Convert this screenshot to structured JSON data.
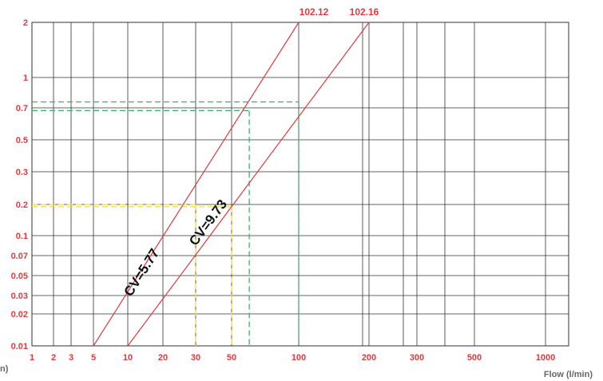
{
  "chart_data": {
    "type": "line",
    "xlabel": "Flow (l/min)",
    "ylabel_fragment": "n)",
    "x_ticks": [
      {
        "label": "1"
      },
      {
        "label": "2"
      },
      {
        "label": "3"
      },
      {
        "label": "5"
      },
      {
        "label": "10"
      },
      {
        "label": "20"
      },
      {
        "label": "30"
      },
      {
        "label": "50"
      },
      {
        "label": "100"
      },
      {
        "label": "200"
      },
      {
        "label": "300"
      },
      {
        "label": "500"
      },
      {
        "label": "1000"
      }
    ],
    "y_ticks": [
      {
        "label": "2"
      },
      {
        "label": "1"
      },
      {
        "label": "0.7"
      },
      {
        "label": "0.5"
      },
      {
        "label": "0.3"
      },
      {
        "label": "0.2"
      },
      {
        "label": "0.1"
      },
      {
        "label": "0.07"
      },
      {
        "label": "0.05"
      },
      {
        "label": "0.03"
      },
      {
        "label": "0.02"
      },
      {
        "label": "0.01"
      }
    ],
    "series": [
      {
        "name": "102.12",
        "curve_label": "CV=5.77",
        "points": [
          {
            "x": "5",
            "y": "0.01"
          },
          {
            "x": "100",
            "y": "2"
          }
        ]
      },
      {
        "name": "102.16",
        "curve_label": "CV=9.73",
        "points": [
          {
            "x": "10",
            "y": "0.01"
          },
          {
            "x": "200",
            "y": "2"
          }
        ]
      }
    ],
    "guides": [
      {
        "color": "yellow",
        "series": "102.12",
        "x": "30",
        "y": "0.2"
      },
      {
        "color": "yellow",
        "series": "102.16",
        "x": "50",
        "y": "0.19"
      },
      {
        "color": "green",
        "series": "102.12",
        "x": "60",
        "y": "0.68"
      },
      {
        "color": "green",
        "series": "102.16",
        "x": "100",
        "y": "0.75"
      }
    ],
    "grid": true
  },
  "colors": {
    "axis_labels": "#e03a3e",
    "series": "#e03a3e",
    "guide_yellow": "#f0dc3c",
    "guide_green": "#3cb46e",
    "grid": "#333333",
    "xlabel": "#666666"
  }
}
